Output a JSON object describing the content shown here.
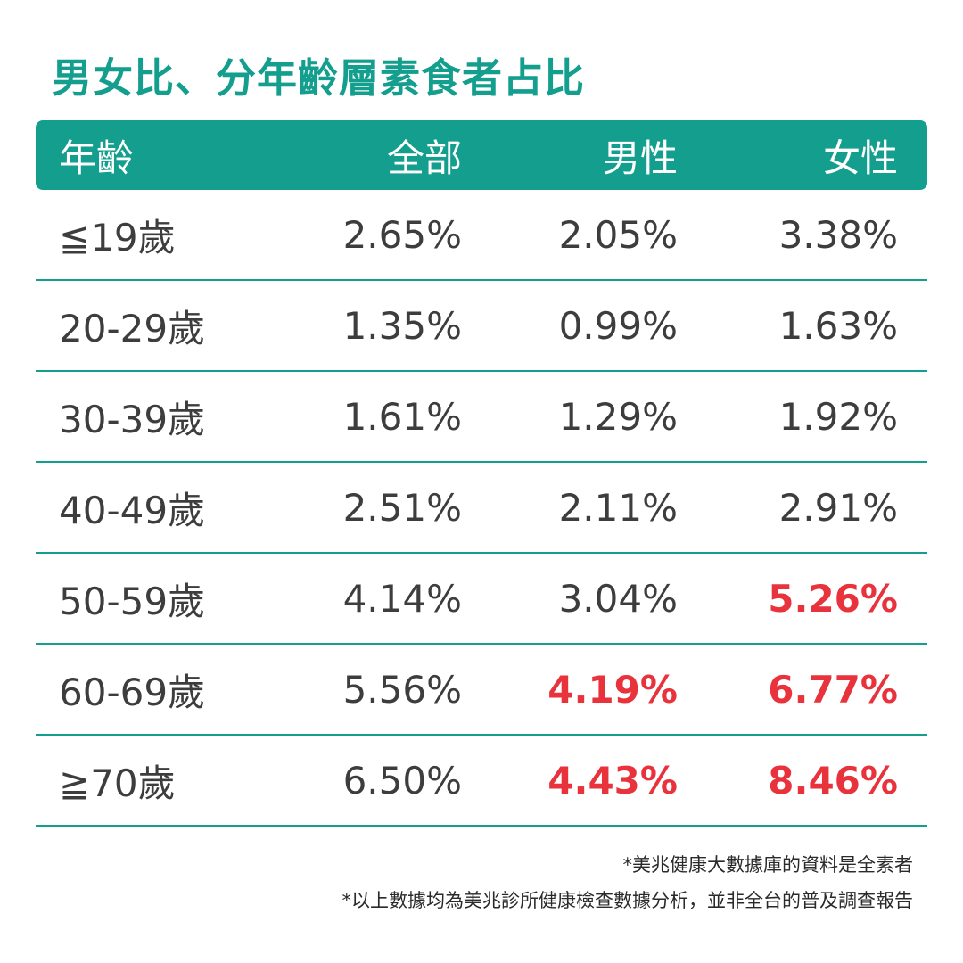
{
  "title": "男女比、分年齡層素食者占比",
  "chart_data": {
    "type": "table",
    "title": "男女比、分年齡層素食者占比",
    "columns": [
      "年齡",
      "全部",
      "男性",
      "女性"
    ],
    "rows": [
      {
        "age": "≦19歲",
        "all": "2.65%",
        "male": "2.05%",
        "female": "3.38%",
        "male_hl": false,
        "female_hl": false
      },
      {
        "age": "20-29歲",
        "all": "1.35%",
        "male": "0.99%",
        "female": "1.63%",
        "male_hl": false,
        "female_hl": false
      },
      {
        "age": "30-39歲",
        "all": "1.61%",
        "male": "1.29%",
        "female": "1.92%",
        "male_hl": false,
        "female_hl": false
      },
      {
        "age": "40-49歲",
        "all": "2.51%",
        "male": "2.11%",
        "female": "2.91%",
        "male_hl": false,
        "female_hl": false
      },
      {
        "age": "50-59歲",
        "all": "4.14%",
        "male": "3.04%",
        "female": "5.26%",
        "male_hl": false,
        "female_hl": true
      },
      {
        "age": "60-69歲",
        "all": "5.56%",
        "male": "4.19%",
        "female": "6.77%",
        "male_hl": true,
        "female_hl": true
      },
      {
        "age": "≧70歲",
        "all": "6.50%",
        "male": "4.43%",
        "female": "8.46%",
        "male_hl": true,
        "female_hl": true
      }
    ]
  },
  "notes": [
    "*美兆健康大數據庫的資料是全素者",
    "*以上數據均為美兆診所健康檢查數據分析，並非全台的普及調查報告"
  ],
  "colors": {
    "accent": "#139e8e",
    "highlight": "#e8323c",
    "text": "#3d3d3d"
  }
}
